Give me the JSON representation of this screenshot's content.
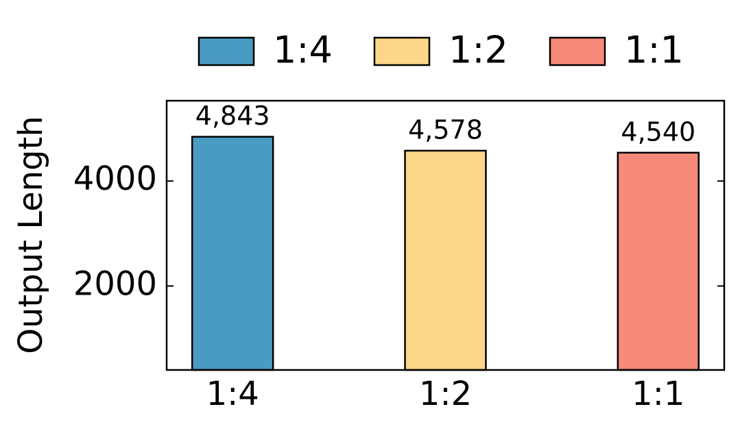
{
  "chart_data": {
    "type": "bar",
    "ylabel": "Output Length",
    "categories": [
      "1:4",
      "1:2",
      "1:1"
    ],
    "values": [
      4843,
      4578,
      4540
    ],
    "value_labels": [
      "4,843",
      "4,578",
      "4,540"
    ],
    "colors": [
      "#4a9bc2",
      "#fcd689",
      "#f7897a"
    ],
    "ylim": [
      400,
      5530
    ],
    "yticks": [
      2000,
      4000
    ],
    "legend": "top"
  }
}
